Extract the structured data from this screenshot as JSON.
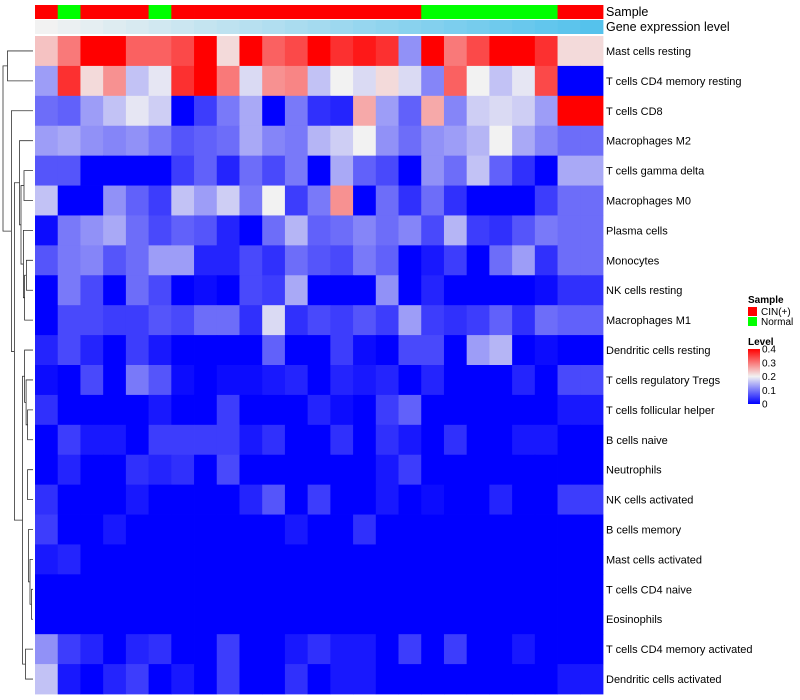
{
  "chart_data": {
    "type": "heatmap",
    "title": "",
    "annotation_labels": {
      "sample": "Sample",
      "gene_expression": "Gene expression level"
    },
    "sample_groups": [
      "CIN",
      "Normal",
      "CIN",
      "CIN",
      "CIN",
      "Normal",
      "CIN",
      "CIN",
      "CIN",
      "CIN",
      "CIN",
      "CIN",
      "CIN",
      "CIN",
      "CIN",
      "CIN",
      "CIN",
      "Normal",
      "Normal",
      "Normal",
      "Normal",
      "Normal",
      "Normal",
      "CIN",
      "CIN"
    ],
    "gene_expression_gradient": [
      "#f2f2f2",
      "#55c2ec"
    ],
    "rows": [
      "Mast cells resting",
      "T cells CD4 memory resting",
      "T cells CD8",
      "Macrophages M2",
      "T cells gamma delta",
      "Macrophages M0",
      "Plasma cells",
      "Monocytes",
      "NK cells resting",
      "Macrophages M1",
      "Dendritic cells resting",
      "T cells regulatory  Tregs",
      "T cells follicular helper",
      "B cells naive",
      "Neutrophils",
      "NK cells activated",
      "B cells memory",
      "Mast cells activated",
      "T cells CD4 naive",
      "Eosinophils",
      "T cells CD4 memory activated",
      "Dendritic cells activated"
    ],
    "values": [
      [
        0.24,
        0.3,
        0.4,
        0.4,
        0.32,
        0.32,
        0.34,
        0.4,
        0.22,
        0.4,
        0.32,
        0.34,
        0.4,
        0.36,
        0.38,
        0.36,
        0.12,
        0.4,
        0.3,
        0.34,
        0.4,
        0.4,
        0.36,
        0.22,
        0.22
      ],
      [
        0.13,
        0.36,
        0.22,
        0.28,
        0.16,
        0.19,
        0.36,
        0.4,
        0.3,
        0.18,
        0.28,
        0.29,
        0.16,
        0.2,
        0.18,
        0.22,
        0.18,
        0.11,
        0.32,
        0.2,
        0.16,
        0.19,
        0.34,
        0.0,
        0.0
      ],
      [
        0.09,
        0.08,
        0.13,
        0.16,
        0.19,
        0.17,
        0.0,
        0.05,
        0.1,
        0.14,
        0.0,
        0.1,
        0.04,
        0.03,
        0.26,
        0.13,
        0.08,
        0.26,
        0.11,
        0.17,
        0.18,
        0.17,
        0.13,
        0.4,
        0.4
      ],
      [
        0.13,
        0.14,
        0.12,
        0.11,
        0.12,
        0.1,
        0.07,
        0.08,
        0.09,
        0.14,
        0.11,
        0.1,
        0.15,
        0.17,
        0.2,
        0.12,
        0.09,
        0.12,
        0.13,
        0.15,
        0.2,
        0.14,
        0.11,
        0.09,
        0.09
      ],
      [
        0.07,
        0.07,
        0.0,
        0.0,
        0.0,
        0.0,
        0.05,
        0.08,
        0.03,
        0.09,
        0.06,
        0.1,
        0.0,
        0.14,
        0.08,
        0.06,
        0.0,
        0.12,
        0.09,
        0.16,
        0.08,
        0.04,
        0.0,
        0.14,
        0.14
      ],
      [
        0.16,
        0.0,
        0.0,
        0.12,
        0.08,
        0.05,
        0.16,
        0.13,
        0.17,
        0.1,
        0.2,
        0.05,
        0.1,
        0.28,
        0.0,
        0.09,
        0.04,
        0.09,
        0.04,
        0.0,
        0.0,
        0.0,
        0.05,
        0.09,
        0.09
      ],
      [
        0.01,
        0.1,
        0.12,
        0.14,
        0.09,
        0.06,
        0.08,
        0.07,
        0.03,
        0.0,
        0.09,
        0.15,
        0.08,
        0.09,
        0.11,
        0.09,
        0.11,
        0.06,
        0.15,
        0.05,
        0.04,
        0.07,
        0.1,
        0.09,
        0.09
      ],
      [
        0.07,
        0.1,
        0.11,
        0.07,
        0.09,
        0.13,
        0.13,
        0.03,
        0.03,
        0.06,
        0.04,
        0.09,
        0.07,
        0.06,
        0.1,
        0.08,
        0.0,
        0.02,
        0.05,
        0.0,
        0.09,
        0.13,
        0.04,
        0.09,
        0.09
      ],
      [
        0.0,
        0.1,
        0.06,
        0.0,
        0.09,
        0.06,
        0.0,
        0.01,
        0.0,
        0.06,
        0.05,
        0.14,
        0.0,
        0.0,
        0.0,
        0.12,
        0.0,
        0.03,
        0.0,
        0.0,
        0.0,
        0.0,
        0.01,
        0.04,
        0.04
      ],
      [
        0.0,
        0.06,
        0.06,
        0.05,
        0.05,
        0.07,
        0.06,
        0.09,
        0.09,
        0.04,
        0.18,
        0.04,
        0.06,
        0.05,
        0.07,
        0.05,
        0.13,
        0.05,
        0.04,
        0.05,
        0.08,
        0.04,
        0.09,
        0.08,
        0.08
      ],
      [
        0.03,
        0.06,
        0.03,
        0.0,
        0.05,
        0.02,
        0.0,
        0.0,
        0.0,
        0.0,
        0.08,
        0.0,
        0.0,
        0.05,
        0.01,
        0.0,
        0.06,
        0.06,
        0.0,
        0.13,
        0.15,
        0.0,
        0.01,
        0.0,
        0.0
      ],
      [
        0.01,
        0.0,
        0.06,
        0.0,
        0.1,
        0.07,
        0.01,
        0.0,
        0.01,
        0.01,
        0.02,
        0.03,
        0.0,
        0.03,
        0.02,
        0.03,
        0.0,
        0.03,
        0.0,
        0.0,
        0.0,
        0.03,
        0.0,
        0.06,
        0.06
      ],
      [
        0.04,
        0.0,
        0.0,
        0.0,
        0.0,
        0.02,
        0.0,
        0.0,
        0.05,
        0.0,
        0.0,
        0.0,
        0.03,
        0.01,
        0.0,
        0.05,
        0.08,
        0.0,
        0.0,
        0.0,
        0.0,
        0.0,
        0.0,
        0.02,
        0.02
      ],
      [
        0.0,
        0.05,
        0.02,
        0.02,
        0.0,
        0.05,
        0.05,
        0.05,
        0.05,
        0.02,
        0.04,
        0.0,
        0.0,
        0.04,
        0.0,
        0.04,
        0.02,
        0.0,
        0.04,
        0.0,
        0.0,
        0.02,
        0.02,
        0.0,
        0.0
      ],
      [
        0.0,
        0.03,
        0.0,
        0.0,
        0.04,
        0.03,
        0.04,
        0.0,
        0.06,
        0.0,
        0.0,
        0.0,
        0.0,
        0.0,
        0.0,
        0.02,
        0.05,
        0.0,
        0.0,
        0.0,
        0.0,
        0.0,
        0.0,
        0.0,
        0.0
      ],
      [
        0.04,
        0.0,
        0.0,
        0.0,
        0.02,
        0.0,
        0.0,
        0.0,
        0.0,
        0.03,
        0.07,
        0.0,
        0.05,
        0.0,
        0.0,
        0.02,
        0.0,
        0.01,
        0.0,
        0.0,
        0.03,
        0.0,
        0.0,
        0.05,
        0.05
      ],
      [
        0.05,
        0.0,
        0.0,
        0.02,
        0.0,
        0.0,
        0.0,
        0.0,
        0.0,
        0.0,
        0.0,
        0.02,
        0.0,
        0.0,
        0.04,
        0.0,
        0.0,
        0.0,
        0.0,
        0.0,
        0.0,
        0.0,
        0.0,
        0.0,
        0.0
      ],
      [
        0.02,
        0.03,
        0.0,
        0.0,
        0.0,
        0.0,
        0.0,
        0.0,
        0.0,
        0.0,
        0.0,
        0.0,
        0.0,
        0.0,
        0.0,
        0.0,
        0.0,
        0.0,
        0.0,
        0.0,
        0.0,
        0.0,
        0.0,
        0.0,
        0.0
      ],
      [
        0.0,
        0.0,
        0.0,
        0.0,
        0.0,
        0.0,
        0.0,
        0.0,
        0.0,
        0.0,
        0.0,
        0.0,
        0.0,
        0.0,
        0.0,
        0.0,
        0.0,
        0.0,
        0.0,
        0.0,
        0.0,
        0.0,
        0.0,
        0.0,
        0.0
      ],
      [
        0.0,
        0.0,
        0.0,
        0.0,
        0.0,
        0.0,
        0.0,
        0.0,
        0.0,
        0.0,
        0.0,
        0.0,
        0.0,
        0.0,
        0.0,
        0.0,
        0.0,
        0.0,
        0.0,
        0.0,
        0.0,
        0.0,
        0.0,
        0.0,
        0.0
      ],
      [
        0.12,
        0.05,
        0.03,
        0.0,
        0.03,
        0.04,
        0.0,
        0.0,
        0.05,
        0.0,
        0.0,
        0.02,
        0.04,
        0.02,
        0.02,
        0.0,
        0.05,
        0.0,
        0.05,
        0.0,
        0.0,
        0.02,
        0.0,
        0.0,
        0.0
      ],
      [
        0.16,
        0.02,
        0.0,
        0.03,
        0.05,
        0.0,
        0.02,
        0.0,
        0.05,
        0.0,
        0.0,
        0.04,
        0.0,
        0.02,
        0.02,
        0.0,
        0.0,
        0.0,
        0.0,
        0.0,
        0.0,
        0.0,
        0.0,
        0.02,
        0.02
      ]
    ],
    "dendrogram": {
      "leaf_order": [
        0,
        1,
        2,
        3,
        4,
        5,
        6,
        7,
        8,
        9,
        10,
        11,
        12,
        13,
        14,
        15,
        16,
        17,
        18,
        19,
        20,
        21
      ],
      "merges": [
        [
          18,
          19,
          0.05
        ],
        [
          17,
          18,
          0.1
        ],
        [
          16,
          17,
          0.15
        ],
        [
          14,
          15,
          0.18
        ],
        [
          12,
          13,
          0.18
        ],
        [
          11,
          12,
          0.23
        ],
        [
          10,
          11,
          0.28
        ],
        [
          20,
          21,
          0.25
        ],
        [
          10,
          20,
          0.35
        ],
        [
          7,
          8,
          0.22
        ],
        [
          7,
          9,
          0.28
        ],
        [
          6,
          7,
          0.32
        ],
        [
          4,
          5,
          0.3
        ],
        [
          4,
          6,
          0.4
        ],
        [
          3,
          4,
          0.45
        ],
        [
          3,
          10,
          0.62
        ],
        [
          2,
          3,
          0.72
        ],
        [
          0,
          1,
          0.85
        ],
        [
          0,
          2,
          1.0
        ]
      ]
    },
    "color_scale": {
      "min": 0,
      "max": 0.4,
      "low": "#0000ff",
      "mid": "#f2f2f2",
      "high": "#ff0000"
    },
    "legend": {
      "sample_title": "Sample",
      "sample_items": [
        {
          "label": "CIN(+)",
          "color": "#ff0000"
        },
        {
          "label": "Normal",
          "color": "#00ff00"
        }
      ],
      "level_title": "Level",
      "level_ticks": [
        {
          "value": 0.4,
          "label": "0.4"
        },
        {
          "value": 0.3,
          "label": "0.3"
        },
        {
          "value": 0.2,
          "label": "0.2"
        },
        {
          "value": 0.1,
          "label": "0.1"
        },
        {
          "value": 0,
          "label": "0"
        }
      ]
    },
    "group_colors": {
      "CIN": "#ff0000",
      "Normal": "#00ff00"
    },
    "xlabel": "",
    "ylabel": ""
  }
}
